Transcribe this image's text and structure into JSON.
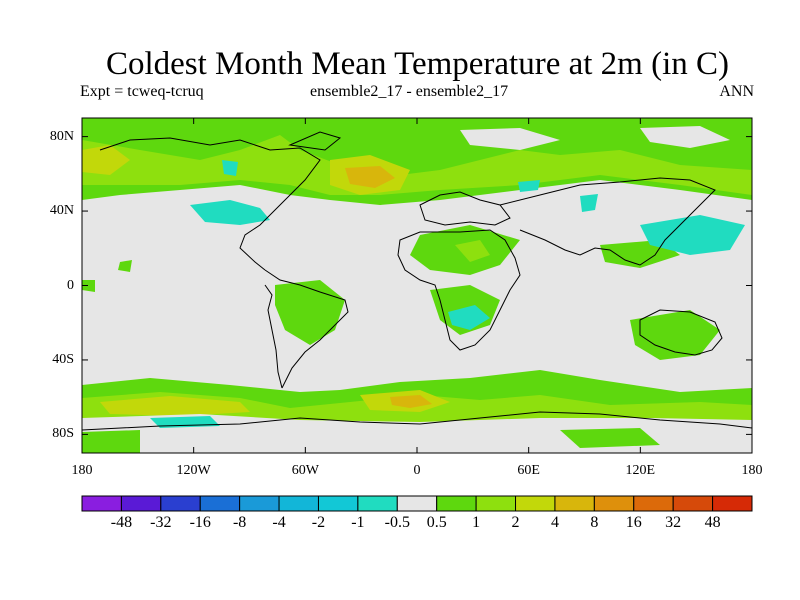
{
  "title": "Coldest Month Mean Temperature at 2m (in C)",
  "subtitle_left": "Expt = tcweq-tcruq",
  "subtitle_center": "ensemble2_17 - ensemble2_17",
  "subtitle_right": "ANN",
  "lat_labels": [
    "80N",
    "40N",
    "0",
    "40S",
    "80S"
  ],
  "lon_labels": [
    "180",
    "120W",
    "60W",
    "0",
    "60E",
    "120E",
    "180"
  ],
  "colorbar": {
    "labels": [
      "-48",
      "-32",
      "-16",
      "-8",
      "-4",
      "-2",
      "-1",
      "-0.5",
      "0.5",
      "1",
      "2",
      "4",
      "8",
      "16",
      "32",
      "48"
    ],
    "colors": [
      "#8a1ee0",
      "#5a1ad6",
      "#2a3fd0",
      "#1a6fd6",
      "#1a9ad8",
      "#12b6d8",
      "#12c8d6",
      "#20dcc0",
      "#e6e6e6",
      "#5ed80e",
      "#8ee00e",
      "#c2d80a",
      "#d8b60c",
      "#de900c",
      "#dc6a0a",
      "#d64a0a",
      "#d62a06"
    ]
  },
  "map": {
    "background_color": "#e6e6e6",
    "lat_range": [
      -90,
      90
    ],
    "lon_range": [
      -180,
      180
    ]
  }
}
